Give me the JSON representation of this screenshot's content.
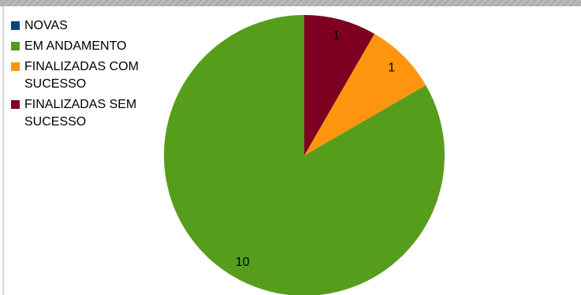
{
  "chart_data": {
    "type": "pie",
    "categories": [
      "NOVAS",
      "EM ANDAMENTO",
      "FINALIZADAS COM SUCESSO",
      "FINALIZADAS SEM SUCESSO"
    ],
    "values": [
      0,
      10,
      1,
      1
    ],
    "colors": [
      "#004586",
      "#579d1c",
      "#ff950e",
      "#7e0021"
    ],
    "legend": "top-left"
  }
}
